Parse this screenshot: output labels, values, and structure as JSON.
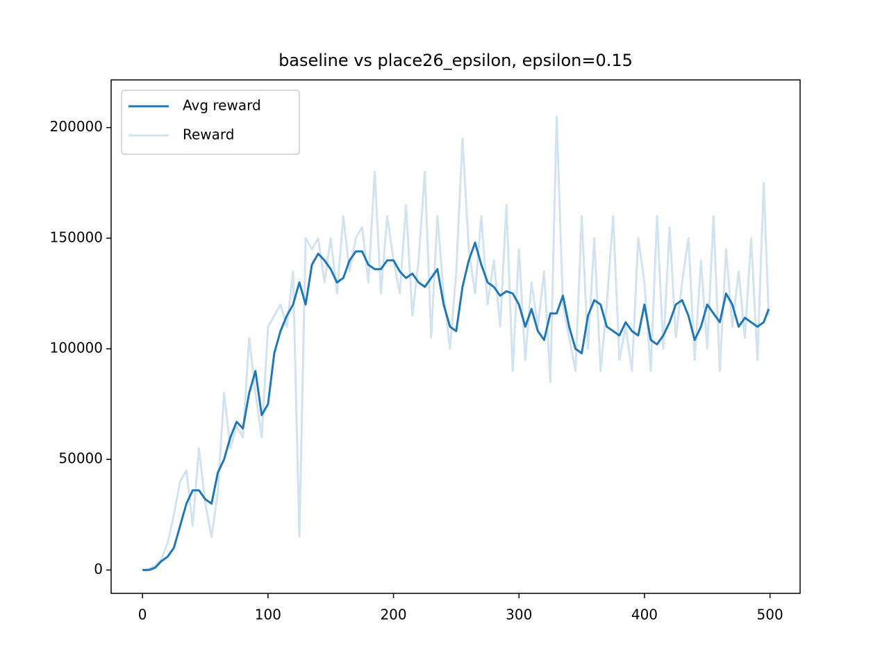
{
  "chart_data": {
    "type": "line",
    "title": "baseline vs place26_epsilon, epsilon=0.15",
    "x": [
      0,
      5,
      10,
      15,
      20,
      25,
      30,
      35,
      40,
      45,
      50,
      55,
      60,
      65,
      70,
      75,
      80,
      85,
      90,
      95,
      100,
      105,
      110,
      115,
      120,
      125,
      130,
      135,
      140,
      145,
      150,
      155,
      160,
      165,
      170,
      175,
      180,
      185,
      190,
      195,
      200,
      205,
      210,
      215,
      220,
      225,
      230,
      235,
      240,
      245,
      250,
      255,
      260,
      265,
      270,
      275,
      280,
      285,
      290,
      295,
      300,
      305,
      310,
      315,
      320,
      325,
      330,
      335,
      340,
      345,
      350,
      355,
      360,
      365,
      370,
      375,
      380,
      385,
      390,
      395,
      400,
      405,
      410,
      415,
      420,
      425,
      430,
      435,
      440,
      445,
      450,
      455,
      460,
      465,
      470,
      475,
      480,
      485,
      490,
      495,
      499
    ],
    "series": [
      {
        "name": "Avg reward",
        "color": "#1f77b4",
        "values": [
          0,
          0,
          1000,
          4000,
          6000,
          10000,
          20000,
          30000,
          36000,
          36000,
          32000,
          30000,
          44000,
          50000,
          60000,
          67000,
          64000,
          80000,
          90000,
          70000,
          75000,
          98000,
          108000,
          115000,
          120000,
          130000,
          120000,
          138000,
          143000,
          140000,
          136000,
          130000,
          132000,
          140000,
          144000,
          144000,
          138000,
          136000,
          136000,
          140000,
          140000,
          135000,
          132000,
          134000,
          130000,
          128000,
          132000,
          136000,
          120000,
          110000,
          108000,
          128000,
          140000,
          148000,
          138000,
          130000,
          128000,
          124000,
          126000,
          125000,
          120000,
          110000,
          118000,
          108000,
          104000,
          116000,
          116000,
          124000,
          110000,
          100000,
          98000,
          115000,
          122000,
          120000,
          110000,
          108000,
          106000,
          112000,
          108000,
          106000,
          120000,
          104000,
          102000,
          106000,
          112000,
          120000,
          122000,
          115000,
          104000,
          110000,
          120000,
          116000,
          112000,
          125000,
          120000,
          110000,
          114000,
          112000,
          110000,
          112000,
          118000
        ]
      },
      {
        "name": "Reward",
        "color": "#d2e3f0",
        "values": [
          0,
          500,
          2000,
          5000,
          12000,
          25000,
          40000,
          45000,
          20000,
          55000,
          30000,
          15000,
          35000,
          80000,
          55000,
          65000,
          60000,
          105000,
          80000,
          60000,
          110000,
          115000,
          120000,
          110000,
          135000,
          15000,
          150000,
          145000,
          150000,
          130000,
          150000,
          125000,
          160000,
          135000,
          150000,
          155000,
          130000,
          180000,
          125000,
          160000,
          140000,
          125000,
          165000,
          115000,
          140000,
          180000,
          105000,
          160000,
          125000,
          100000,
          135000,
          195000,
          145000,
          125000,
          160000,
          120000,
          140000,
          110000,
          165000,
          90000,
          145000,
          95000,
          130000,
          110000,
          135000,
          85000,
          205000,
          120000,
          105000,
          90000,
          160000,
          100000,
          150000,
          90000,
          120000,
          160000,
          95000,
          110000,
          90000,
          150000,
          130000,
          90000,
          160000,
          100000,
          155000,
          105000,
          130000,
          150000,
          95000,
          140000,
          100000,
          160000,
          90000,
          145000,
          110000,
          135000,
          105000,
          150000,
          95000,
          175000,
          115000
        ]
      }
    ],
    "xlim": [
      -25,
      524
    ],
    "ylim": [
      -10550,
      221550
    ],
    "xticks": [
      0,
      100,
      200,
      300,
      400,
      500
    ],
    "yticks": [
      0,
      50000,
      100000,
      150000,
      200000
    ],
    "legend": "upper left"
  }
}
